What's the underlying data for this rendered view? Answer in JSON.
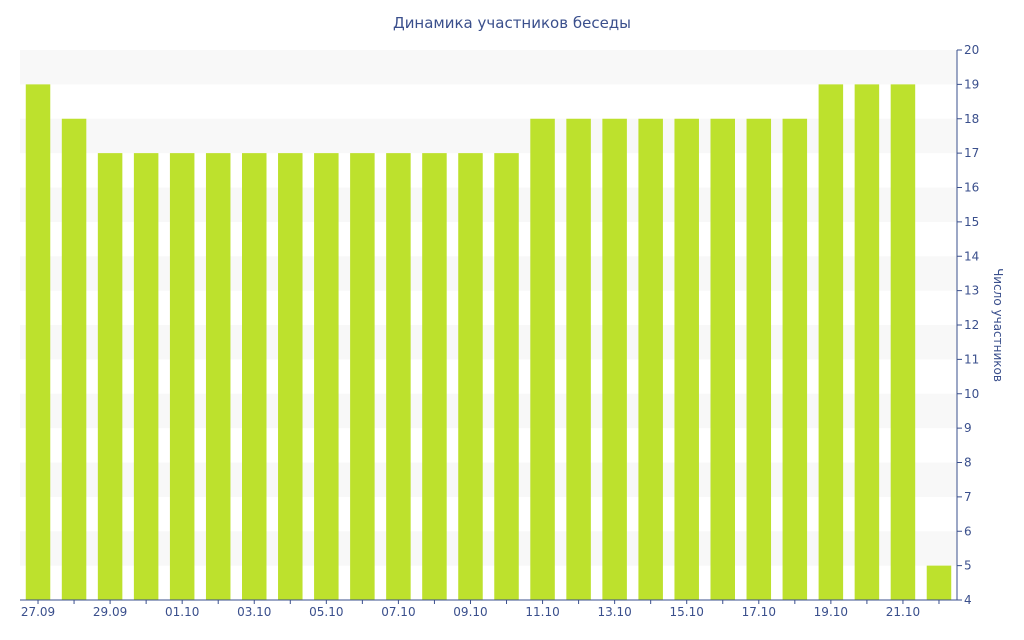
{
  "chart_data": {
    "type": "bar",
    "title": "Динамика участников беседы",
    "xlabel": "",
    "ylabel": "Число участников",
    "categories": [
      "27.09",
      "28.09",
      "29.09",
      "30.09",
      "01.10",
      "02.10",
      "03.10",
      "04.10",
      "05.10",
      "06.10",
      "07.10",
      "08.10",
      "09.10",
      "10.10",
      "11.10",
      "12.10",
      "13.10",
      "14.10",
      "15.10",
      "16.10",
      "17.10",
      "18.10",
      "19.10",
      "20.10",
      "21.10",
      "22.10"
    ],
    "x_tick_labels": [
      "27.09",
      "29.09",
      "01.10",
      "03.10",
      "05.10",
      "07.10",
      "09.10",
      "11.10",
      "13.10",
      "15.10",
      "17.10",
      "19.10",
      "21.10"
    ],
    "values": [
      19,
      18,
      17,
      17,
      17,
      17,
      17,
      17,
      17,
      17,
      17,
      17,
      17,
      17,
      18,
      18,
      18,
      18,
      18,
      18,
      18,
      18,
      19,
      19,
      19,
      5
    ],
    "ylim": [
      4,
      20
    ],
    "y_ticks": [
      4,
      5,
      6,
      7,
      8,
      9,
      10,
      11,
      12,
      13,
      14,
      15,
      16,
      17,
      18,
      19,
      20
    ],
    "y_axis_side": "right",
    "grid": "alternating horizontal bands",
    "legend": "none",
    "colors": {
      "bar": "#bde12d",
      "text": "#3a4f8c",
      "band": "#f8f8f8"
    }
  }
}
